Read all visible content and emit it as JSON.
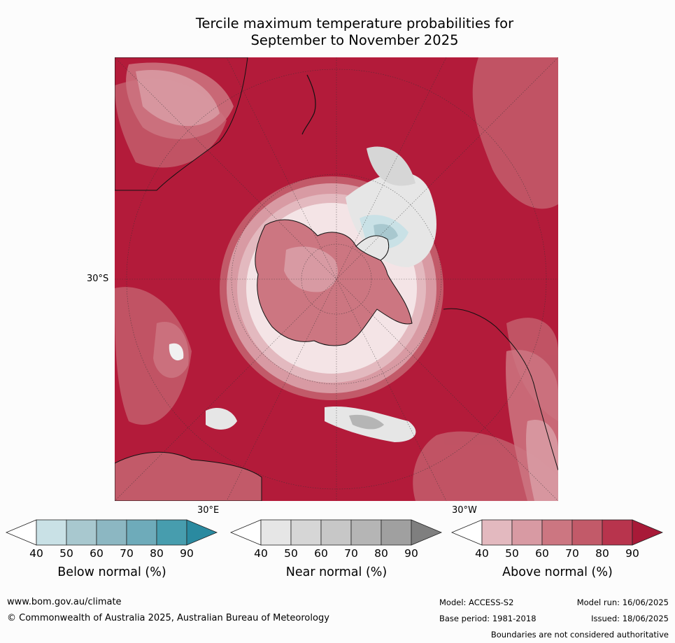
{
  "title_line1": "Tercile maximum temperature probabilities for",
  "title_line2": "September to November 2025",
  "map": {
    "lat_label": "30°S",
    "lon_label_east": "30°E",
    "lon_label_west": "30°W"
  },
  "colorbars": [
    {
      "label": "Below normal (%)",
      "ticks": [
        "40",
        "50",
        "60",
        "70",
        "80",
        "90"
      ],
      "colors": [
        "#ffffff",
        "#c9e1e6",
        "#a8c8cf",
        "#8cb7c2",
        "#6eabba",
        "#479dae",
        "#2a8aa0"
      ]
    },
    {
      "label": "Near normal (%)",
      "ticks": [
        "40",
        "50",
        "60",
        "70",
        "80",
        "90"
      ],
      "colors": [
        "#ffffff",
        "#e6e6e6",
        "#d6d6d6",
        "#c7c7c7",
        "#b5b5b5",
        "#a0a0a0",
        "#7f7f7f"
      ]
    },
    {
      "label": "Above normal (%)",
      "ticks": [
        "40",
        "50",
        "60",
        "70",
        "80",
        "90"
      ],
      "colors": [
        "#ffffff",
        "#e3b9bf",
        "#d89aa3",
        "#cc7681",
        "#c25a69",
        "#b8344d",
        "#a81a38"
      ]
    }
  ],
  "footer": {
    "url": "www.bom.gov.au/climate",
    "copyright": "© Commonwealth of Australia 2025, Australian Bureau of Meteorology",
    "model": "Model: ACCESS-S2",
    "base_period": "Base period: 1981-2018",
    "model_run": "Model run: 16/06/2025",
    "issued": "Issued: 18/06/2025",
    "disclaimer": "Boundaries are not considered authoritative"
  }
}
